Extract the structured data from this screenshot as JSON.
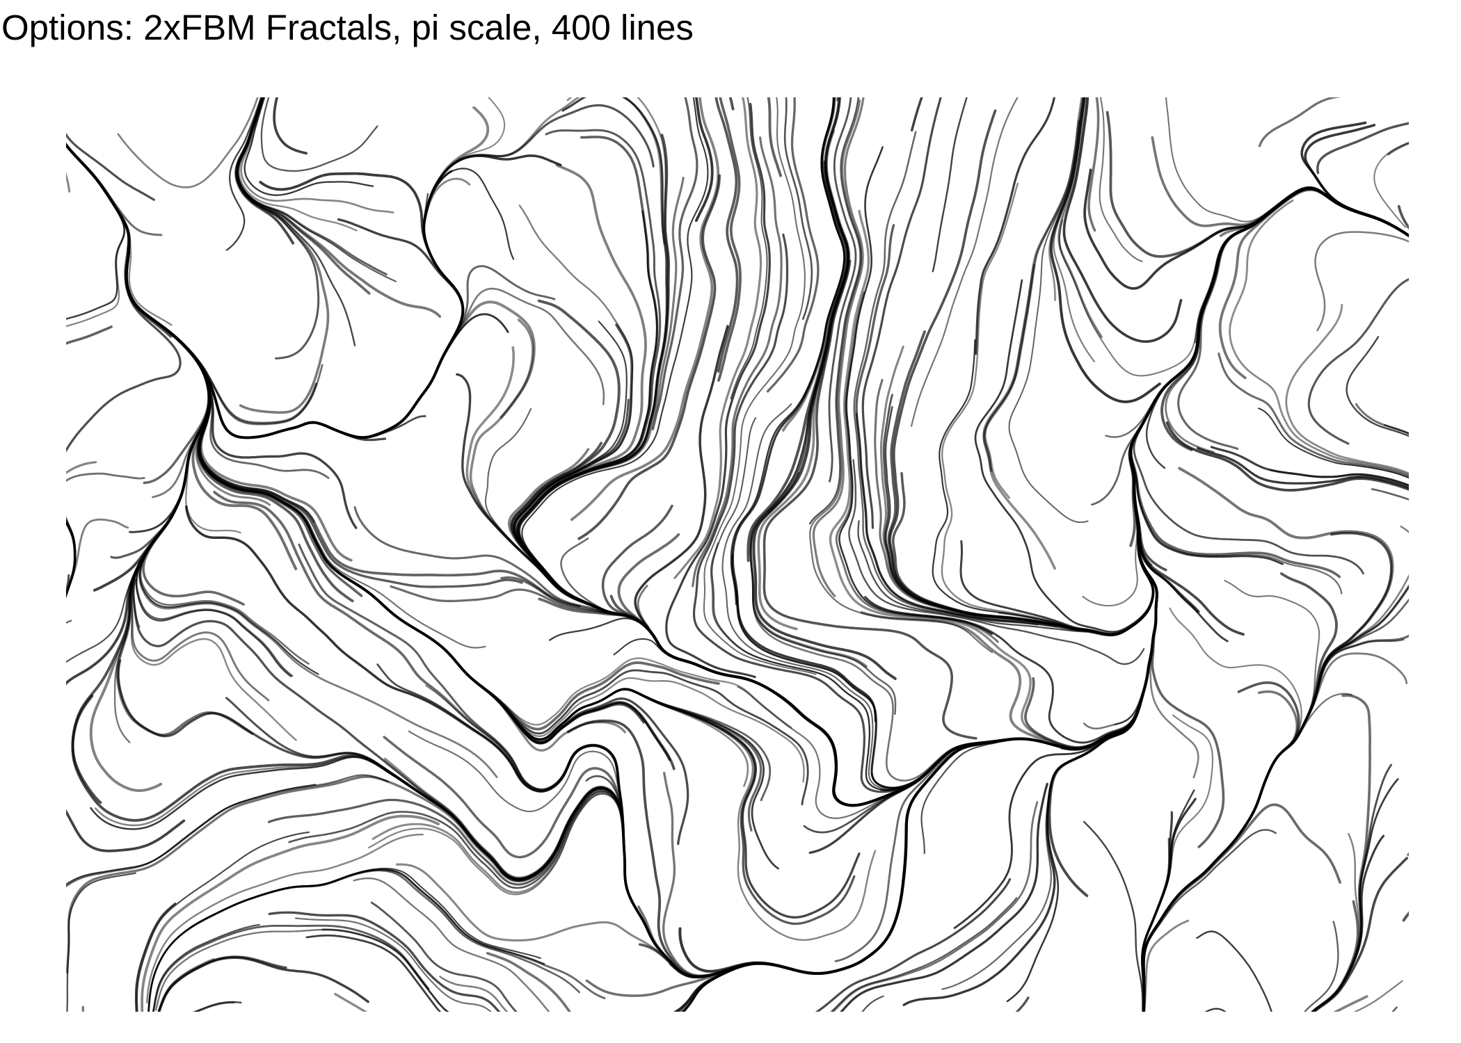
{
  "title": "Options: 2xFBM Fractals, pi scale, 400 lines",
  "artwork": {
    "subject": "flow-field-lines",
    "line_count": 400,
    "line_color": "#000000",
    "background_color": "#ffffff"
  }
}
